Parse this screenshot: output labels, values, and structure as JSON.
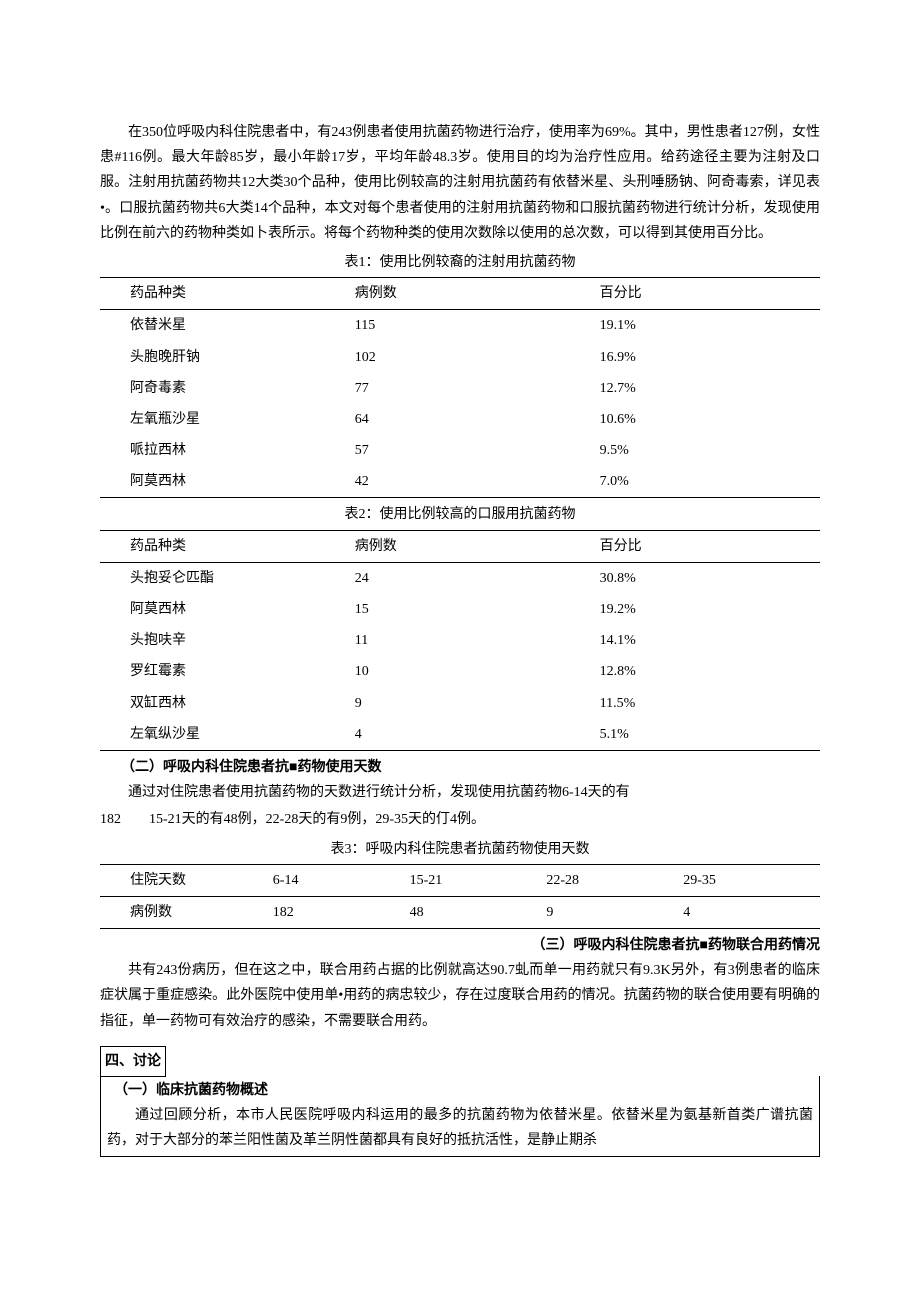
{
  "intro_paragraph": "在350位呼吸内科住院患者中，有243例患者使用抗菌药物进行治疗，使用率为69%。其中，男性患者127例，女性患#116例。最大年龄85岁，最小年龄17岁，平均年龄48.3岁。使用目的均为治疗性应用。给药途径主要为注射及口服。注射用抗菌药物共12大类30个品种，使用比例较高的注射用抗菌药有依替米星、头刑唾肠钠、阿奇毒索，详见表•。口服抗菌药物共6大类14个品种，本文对每个患者使用的注射用抗菌药物和口服抗菌药物进行统计分析，发现使用比例在前六的药物种类如卜表所示。将每个药物种类的使用次数除以使用的总次数，可以得到其使用百分比。",
  "table1": {
    "caption": "表1：使用比例较裔的注射用抗菌药物",
    "headers": [
      "药品种类",
      "病例数",
      "百分比"
    ],
    "rows": [
      [
        "依替米星",
        "115",
        "19.1%"
      ],
      [
        "头胞晚肝钠",
        "102",
        "16.9%"
      ],
      [
        "阿奇毒素",
        "77",
        "12.7%"
      ],
      [
        "左氧瓶沙星",
        "64",
        "10.6%"
      ],
      [
        "哌拉西林",
        "57",
        "9.5%"
      ],
      [
        "阿莫西林",
        "42",
        "7.0%"
      ]
    ]
  },
  "table2": {
    "caption": "表2：使用比例较高的口服用抗菌药物",
    "headers": [
      "药品种类",
      "病例数",
      "百分比"
    ],
    "rows": [
      [
        "头抱妥仑匹酯",
        "24",
        "30.8%"
      ],
      [
        "阿莫西林",
        "15",
        "19.2%"
      ],
      [
        "头抱呋辛",
        "11",
        "14.1%"
      ],
      [
        "罗红霉素",
        "10",
        "12.8%"
      ],
      [
        "双缸西林",
        "9",
        "11.5%"
      ],
      [
        "左氧纵沙星",
        "4",
        "5.1%"
      ]
    ]
  },
  "section2": {
    "heading": "（二）呼吸内科住院患者抗■药物使用天数",
    "text": "通过对住院患者使用抗菌药物的天数进行统计分析，发现使用抗菌药物6-14天的有",
    "text2": "182　　15-21天的有48例，22-28天的有9例，29-35天的仃4例。"
  },
  "table3": {
    "caption": "表3：呼吸内科住院患者抗菌药物使用天数",
    "headers": [
      "住院天数",
      "6-14",
      "15-21",
      "22-28",
      "29-35"
    ],
    "rows": [
      [
        "病例数",
        "182",
        "48",
        "9",
        "4"
      ]
    ]
  },
  "section3": {
    "heading": "（三）呼吸内科住院患者抗■药物联合用药情况",
    "text": "共有243份病历，但在这之中，联合用药占据的比例就高达90.7虬而单一用药就只有9.3K另外，有3例患者的临床症状属于重症感染。此外医院中使用单•用药的病忠较少，存在过度联合用药的情况。抗菌药物的联合使用要有明确的指征，单一药物可有效治疗的感染，不需要联合用药。"
  },
  "section4": {
    "heading": "四、讨论",
    "sub_heading": "（一）临床抗菌药物概述",
    "text": "通过回顾分析，本市人民医院呼吸内科运用的最多的抗菌药物为依替米星。依替米星为氨基新首类广谱抗菌药，对于大部分的苯兰阳性菌及革兰阴性菌都具有良好的抵抗活性，是静止期杀"
  }
}
